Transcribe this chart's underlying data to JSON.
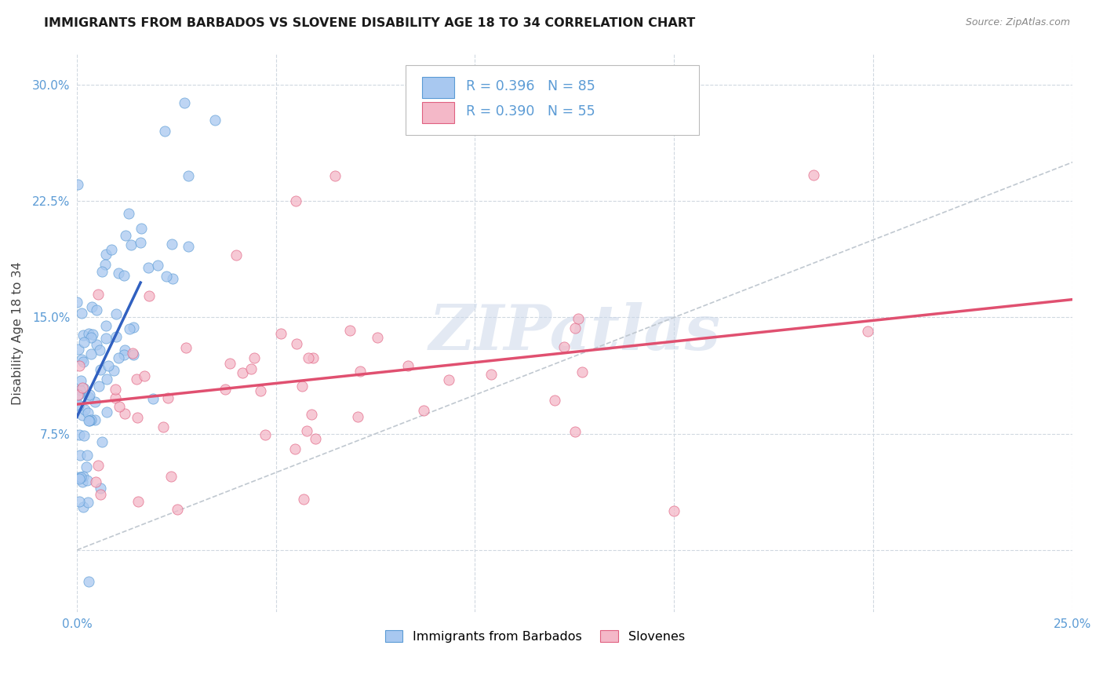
{
  "title": "IMMIGRANTS FROM BARBADOS VS SLOVENE DISABILITY AGE 18 TO 34 CORRELATION CHART",
  "source": "Source: ZipAtlas.com",
  "ylabel": "Disability Age 18 to 34",
  "xlim": [
    0.0,
    0.25
  ],
  "ylim": [
    -0.04,
    0.32
  ],
  "xtick_vals": [
    0.0,
    0.05,
    0.1,
    0.15,
    0.2,
    0.25
  ],
  "xticklabels": [
    "0.0%",
    "",
    "",
    "",
    "",
    "25.0%"
  ],
  "ytick_vals": [
    0.0,
    0.075,
    0.15,
    0.225,
    0.3
  ],
  "yticklabels": [
    "",
    "7.5%",
    "15.0%",
    "22.5%",
    "30.0%"
  ],
  "watermark_text": "ZIPatlas",
  "color_barbados_fill": "#a8c8f0",
  "color_barbados_edge": "#5b9bd5",
  "color_slovene_fill": "#f4b8c8",
  "color_slovene_edge": "#e06080",
  "color_line_barbados": "#3060c0",
  "color_line_slovene": "#e05070",
  "color_diagonal": "#c0c8d0",
  "color_grid": "#d0d8e0",
  "color_tick": "#5b9bd5",
  "color_ylabel": "#444444",
  "legend_label1": "R = 0.396   N = 85",
  "legend_label2": "R = 0.390   N = 55",
  "bottom_label1": "Immigrants from Barbados",
  "bottom_label2": "Slovenes",
  "R_barbados": 0.396,
  "N_barbados": 85,
  "R_slovene": 0.39,
  "N_slovene": 55
}
